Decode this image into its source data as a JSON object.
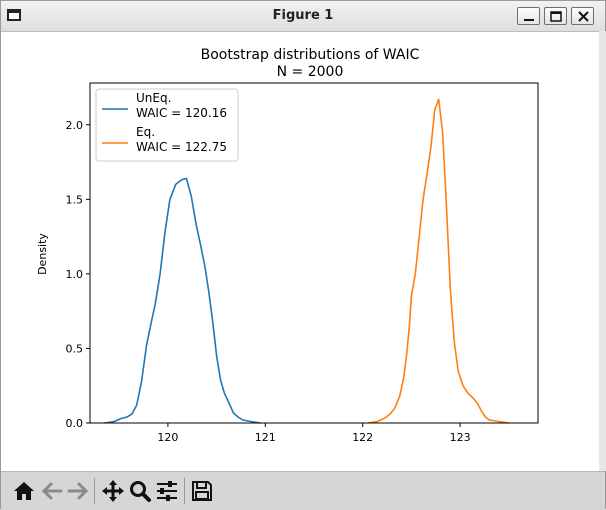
{
  "window": {
    "title": "Figure 1",
    "controls": [
      "minimize",
      "maximize",
      "close"
    ]
  },
  "toolbar": {
    "buttons": [
      "home-icon",
      "back-arrow-icon",
      "forward-arrow-icon",
      "pan-icon",
      "zoom-icon",
      "configure-subplots-icon",
      "save-icon"
    ]
  },
  "chart_data": {
    "type": "line",
    "title": "Bootstrap distributions of WAIC",
    "subtitle": "N = 2000",
    "xlabel": "",
    "ylabel": "Density",
    "xlim": [
      119.2,
      123.8
    ],
    "ylim": [
      0,
      2.28
    ],
    "x_ticks": [
      120,
      121,
      122,
      123
    ],
    "x_tick_labels": [
      "120",
      "121",
      "122",
      "123"
    ],
    "y_ticks": [
      0,
      0.5,
      1,
      1.5,
      2
    ],
    "y_tick_labels": [
      "0.0",
      "0.5",
      "1.0",
      "1.5",
      "2.0"
    ],
    "legend_position": "upper-left",
    "grid": false,
    "series": [
      {
        "name": "UnEq.\nWAIC = 120.16",
        "legend_lines": [
          "UnEq.",
          "WAIC = 120.16"
        ],
        "color": "#1f77b4",
        "points": [
          [
            119.35,
            0
          ],
          [
            119.45,
            0.01
          ],
          [
            119.52,
            0.03
          ],
          [
            119.58,
            0.04
          ],
          [
            119.63,
            0.06
          ],
          [
            119.68,
            0.12
          ],
          [
            119.73,
            0.28
          ],
          [
            119.78,
            0.52
          ],
          [
            119.83,
            0.68
          ],
          [
            119.87,
            0.8
          ],
          [
            119.92,
            1.0
          ],
          [
            119.97,
            1.28
          ],
          [
            120.02,
            1.5
          ],
          [
            120.08,
            1.6
          ],
          [
            120.14,
            1.63
          ],
          [
            120.19,
            1.64
          ],
          [
            120.24,
            1.52
          ],
          [
            120.29,
            1.33
          ],
          [
            120.34,
            1.18
          ],
          [
            120.38,
            1.05
          ],
          [
            120.42,
            0.88
          ],
          [
            120.46,
            0.68
          ],
          [
            120.5,
            0.45
          ],
          [
            120.54,
            0.29
          ],
          [
            120.58,
            0.2
          ],
          [
            120.63,
            0.13
          ],
          [
            120.67,
            0.07
          ],
          [
            120.72,
            0.04
          ],
          [
            120.77,
            0.02
          ],
          [
            120.85,
            0.01
          ],
          [
            120.95,
            0
          ]
        ]
      },
      {
        "name": "Eq.\nWAIC = 122.75",
        "legend_lines": [
          "Eq.",
          "WAIC = 122.75"
        ],
        "color": "#ff7f0e",
        "points": [
          [
            122.05,
            0
          ],
          [
            122.15,
            0.01
          ],
          [
            122.22,
            0.03
          ],
          [
            122.28,
            0.06
          ],
          [
            122.33,
            0.1
          ],
          [
            122.38,
            0.18
          ],
          [
            122.42,
            0.3
          ],
          [
            122.45,
            0.45
          ],
          [
            122.48,
            0.65
          ],
          [
            122.5,
            0.85
          ],
          [
            122.54,
            1.0
          ],
          [
            122.58,
            1.25
          ],
          [
            122.62,
            1.5
          ],
          [
            122.66,
            1.67
          ],
          [
            122.7,
            1.85
          ],
          [
            122.74,
            2.1
          ],
          [
            122.78,
            2.17
          ],
          [
            122.82,
            1.95
          ],
          [
            122.86,
            1.45
          ],
          [
            122.9,
            0.9
          ],
          [
            122.94,
            0.55
          ],
          [
            122.98,
            0.35
          ],
          [
            123.03,
            0.25
          ],
          [
            123.08,
            0.2
          ],
          [
            123.13,
            0.17
          ],
          [
            123.18,
            0.13
          ],
          [
            123.22,
            0.08
          ],
          [
            123.26,
            0.04
          ],
          [
            123.3,
            0.02
          ],
          [
            123.4,
            0.01
          ],
          [
            123.5,
            0
          ]
        ]
      }
    ]
  }
}
